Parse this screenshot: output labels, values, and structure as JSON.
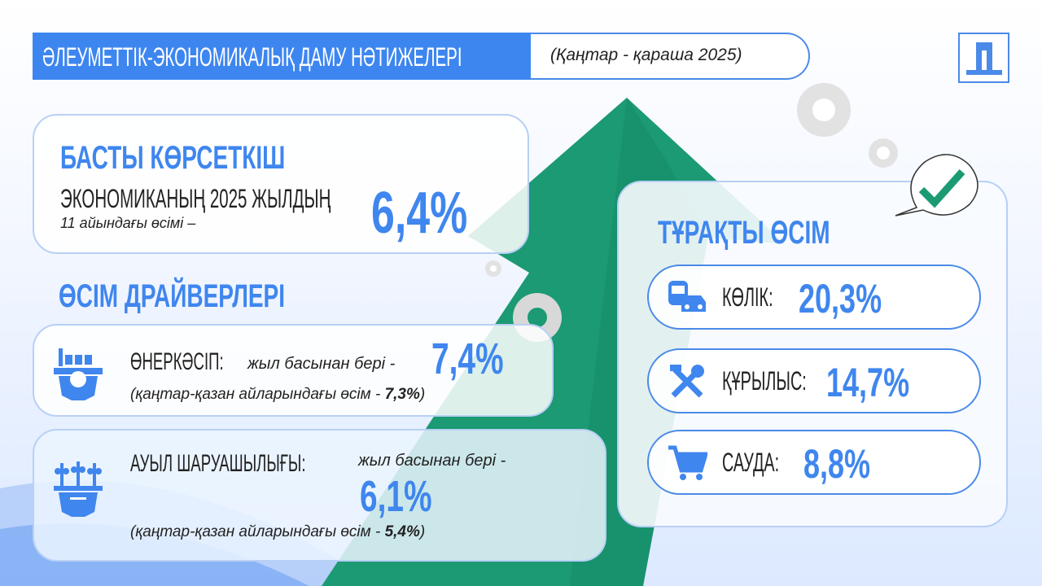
{
  "header": {
    "title": "ӘЛЕУМЕТТІК-ЭКОНОМИКАЛЫҚ ДАМУ НӘТИЖЕЛЕРІ",
    "period": "(Қаңтар - қараша 2025)"
  },
  "colors": {
    "accent": "#3f86ee",
    "arrow": "#1b9a73",
    "check": "#1b9a73"
  },
  "main_indicator": {
    "title": "БАСТЫ КӨРСЕТКІШ",
    "line1": "ЭКОНОМИКАНЫҢ 2025 ЖЫЛДЫҢ",
    "line2": "11 айындағы өсімі –",
    "value": "6,4%"
  },
  "drivers": {
    "title": "ӨСІМ ДРАЙВЕРЛЕРІ",
    "items": [
      {
        "icon": "factory-gear-icon",
        "label": "ӨНЕРКӘСІП:",
        "since": "жыл басынан бері -",
        "value": "7,4%",
        "note_prefix": "(қаңтар-қазан айларындағы өсім - ",
        "note_value": "7,3%",
        "note_suffix": ")"
      },
      {
        "icon": "plants-gear-icon",
        "label": "АУЫЛ ШАРУАШЫЛЫҒЫ:",
        "since": "жыл басынан бері -",
        "value": "6,1%",
        "note_prefix": "(қаңтар-қазан айларындағы өсім - ",
        "note_value": "5,4%",
        "note_suffix": ")"
      }
    ]
  },
  "stable_growth": {
    "title": "ТҰРАҚТЫ ӨСІМ",
    "items": [
      {
        "icon": "transport-icon",
        "label": "КӨЛІК:",
        "value": "20,3%"
      },
      {
        "icon": "tools-icon",
        "label": "ҚҰРЫЛЫС:",
        "value": "14,7%"
      },
      {
        "icon": "cart-icon",
        "label": "САУДА:",
        "value": "8,8%"
      }
    ]
  }
}
